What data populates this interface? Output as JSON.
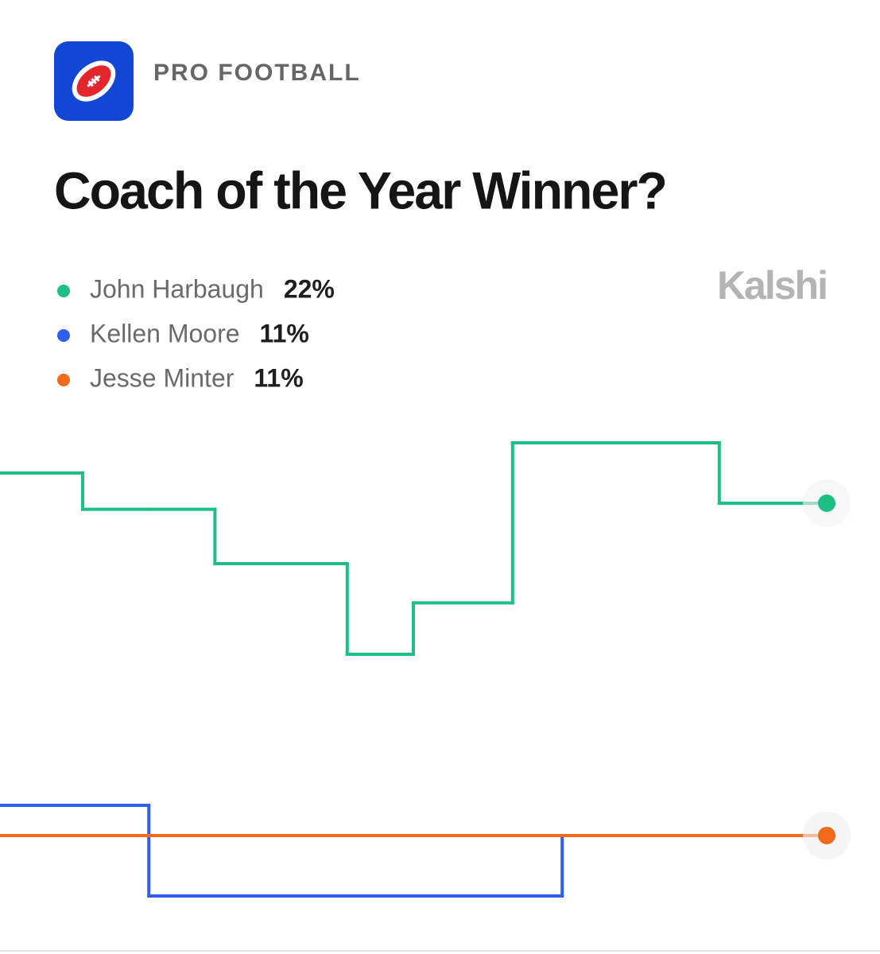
{
  "chart_data": {
    "type": "step-line",
    "category": "PRO FOOTBALL",
    "title": "Coach of the Year Winner?",
    "source": "Kalshi",
    "x": [
      0,
      10,
      18,
      26,
      42,
      50,
      62,
      68,
      87,
      100
    ],
    "xlim": [
      0,
      100
    ],
    "ylim": [
      8,
      24.5
    ],
    "series": [
      {
        "name": "John Harbaugh",
        "color": "#1dbf87",
        "values": [
          23,
          21.8,
          21.8,
          20,
          17,
          18.7,
          24,
          24,
          22,
          22
        ],
        "value_labels": [
          null,
          null,
          null,
          null,
          null,
          null,
          null,
          null,
          null,
          "22%"
        ]
      },
      {
        "name": "Kellen Moore",
        "color": "#2f5ff0",
        "values": [
          12,
          12,
          9,
          9,
          9,
          9,
          9,
          11,
          11,
          11
        ],
        "value_labels": [
          null,
          null,
          null,
          null,
          null,
          null,
          null,
          null,
          null,
          "11%"
        ]
      },
      {
        "name": "Jesse Minter",
        "color": "#f26a1b",
        "values": [
          11,
          11,
          11,
          11,
          11,
          11,
          11,
          11,
          11,
          11
        ],
        "value_labels": [
          null,
          null,
          null,
          null,
          null,
          null,
          null,
          null,
          null,
          "11%"
        ]
      }
    ]
  }
}
